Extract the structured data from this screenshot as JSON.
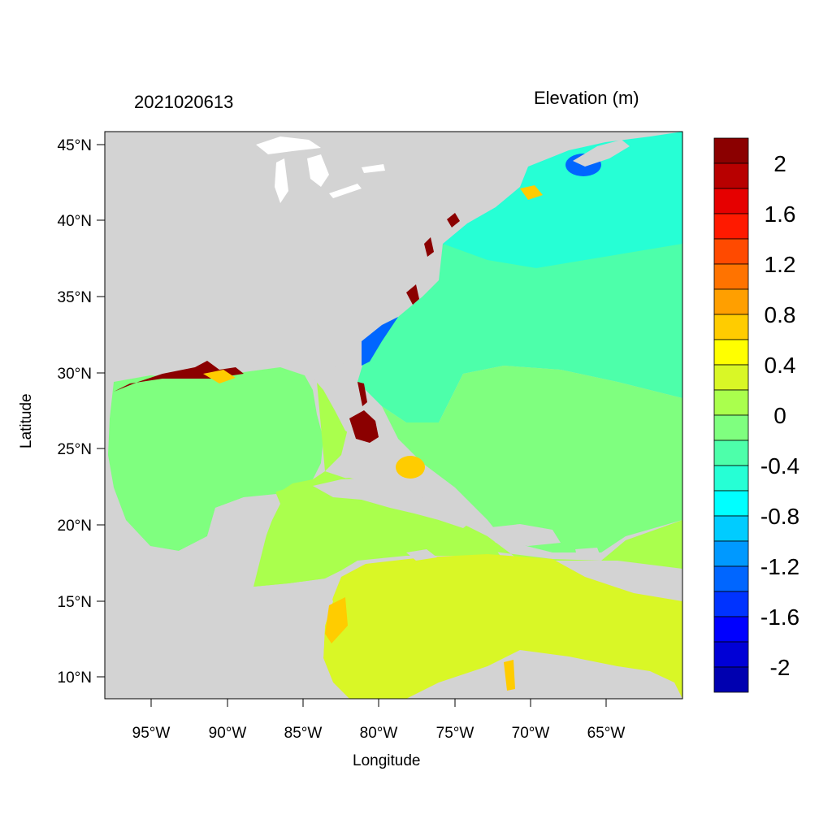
{
  "plot": {
    "date_label": "2021020613",
    "variable_label": "Elevation (m)",
    "xlabel": "Longitude",
    "ylabel": "Latitude"
  },
  "axes": {
    "lon_ticks": [
      "95°W",
      "90°W",
      "85°W",
      "80°W",
      "75°W",
      "70°W",
      "65°W"
    ],
    "lat_ticks": [
      "45°N",
      "40°N",
      "35°N",
      "30°N",
      "25°N",
      "20°N",
      "15°N",
      "10°N"
    ]
  },
  "colorbar": {
    "levels_top_to_bottom": [
      {
        "color": "#8b0000"
      },
      {
        "color": "#b80000"
      },
      {
        "color": "#e60000"
      },
      {
        "color": "#ff1a00"
      },
      {
        "color": "#ff4a00"
      },
      {
        "color": "#ff7300"
      },
      {
        "color": "#ff9f00"
      },
      {
        "color": "#ffcc00"
      },
      {
        "color": "#ffff00"
      },
      {
        "color": "#d9f726"
      },
      {
        "color": "#aaff4d"
      },
      {
        "color": "#7fff7f"
      },
      {
        "color": "#4dffaa"
      },
      {
        "color": "#26ffd5"
      },
      {
        "color": "#00ffff"
      },
      {
        "color": "#00ccff"
      },
      {
        "color": "#0099ff"
      },
      {
        "color": "#0066ff"
      },
      {
        "color": "#0033ff"
      },
      {
        "color": "#0000ff"
      },
      {
        "color": "#0000d6"
      },
      {
        "color": "#0000b0"
      }
    ],
    "labels": [
      "2",
      "1.6",
      "1.2",
      "0.8",
      "0.4",
      "0",
      "-0.4",
      "-0.8",
      "-1.2",
      "-1.6",
      "-2"
    ]
  },
  "colors": {
    "land": "#d3d3d3",
    "water_white": "#ffffff",
    "gulf": "#7fff7f",
    "atlantic_north": "#26ffd5",
    "atlantic_mid": "#4dffaa",
    "caribbean_west": "#aaff4d",
    "caribbean_south": "#d9f726",
    "surge_high": "#8b0000",
    "surge_mid": "#ffcc00",
    "low_blue": "#0066ff"
  }
}
